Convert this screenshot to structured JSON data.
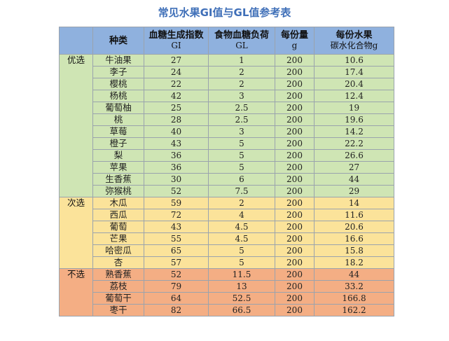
{
  "title": "常见水果GI值与GL值参考表",
  "header": {
    "col_name": "种类",
    "col_gi": "血糖生成指数",
    "col_gi_sub": "GI",
    "col_gl": "食物血糖负荷",
    "col_gl_sub": "GL",
    "col_serving": "每份量",
    "col_serving_sub": "g",
    "col_carb": "每份水果",
    "col_carb_sub": "碳水化合物g"
  },
  "groups": [
    {
      "label": "优选",
      "tone": "good",
      "color": "#cfe5b4",
      "rows": [
        [
          "牛油果",
          "27",
          "1",
          "200",
          "10.6"
        ],
        [
          "李子",
          "24",
          "2",
          "200",
          "17.4"
        ],
        [
          "樱桃",
          "22",
          "2",
          "200",
          "20.4"
        ],
        [
          "杨桃",
          "42",
          "3",
          "200",
          "12.4"
        ],
        [
          "葡萄柚",
          "25",
          "2.5",
          "200",
          "19"
        ],
        [
          "桃",
          "28",
          "2.5",
          "200",
          "19.6"
        ],
        [
          "草莓",
          "40",
          "3",
          "200",
          "14.2"
        ],
        [
          "橙子",
          "43",
          "5",
          "200",
          "22.2"
        ],
        [
          "梨",
          "36",
          "5",
          "200",
          "26.6"
        ],
        [
          "苹果",
          "36",
          "5",
          "200",
          "27"
        ],
        [
          "生香蕉",
          "30",
          "6",
          "200",
          "44"
        ],
        [
          "弥猴桃",
          "52",
          "7.5",
          "200",
          "29"
        ]
      ]
    },
    {
      "label": "次选",
      "tone": "mid",
      "color": "#fbe39a",
      "rows": [
        [
          "木瓜",
          "59",
          "2",
          "200",
          "14"
        ],
        [
          "西瓜",
          "72",
          "4",
          "200",
          "11.6"
        ],
        [
          "葡萄",
          "43",
          "4.5",
          "200",
          "20.6"
        ],
        [
          "芒果",
          "55",
          "4.5",
          "200",
          "16.6"
        ],
        [
          "哈密瓜",
          "65",
          "5",
          "200",
          "15.8"
        ],
        [
          "杏",
          "57",
          "5",
          "200",
          "18.2"
        ]
      ]
    },
    {
      "label": "不选",
      "tone": "bad",
      "color": "#f4ae84",
      "rows": [
        [
          "熟香蕉",
          "52",
          "11.5",
          "200",
          "44"
        ],
        [
          "荔枝",
          "79",
          "13",
          "200",
          "33.2"
        ],
        [
          "葡萄干",
          "64",
          "52.5",
          "200",
          "166.8"
        ],
        [
          "枣干",
          "82",
          "66.5",
          "200",
          "162.2"
        ]
      ]
    }
  ]
}
